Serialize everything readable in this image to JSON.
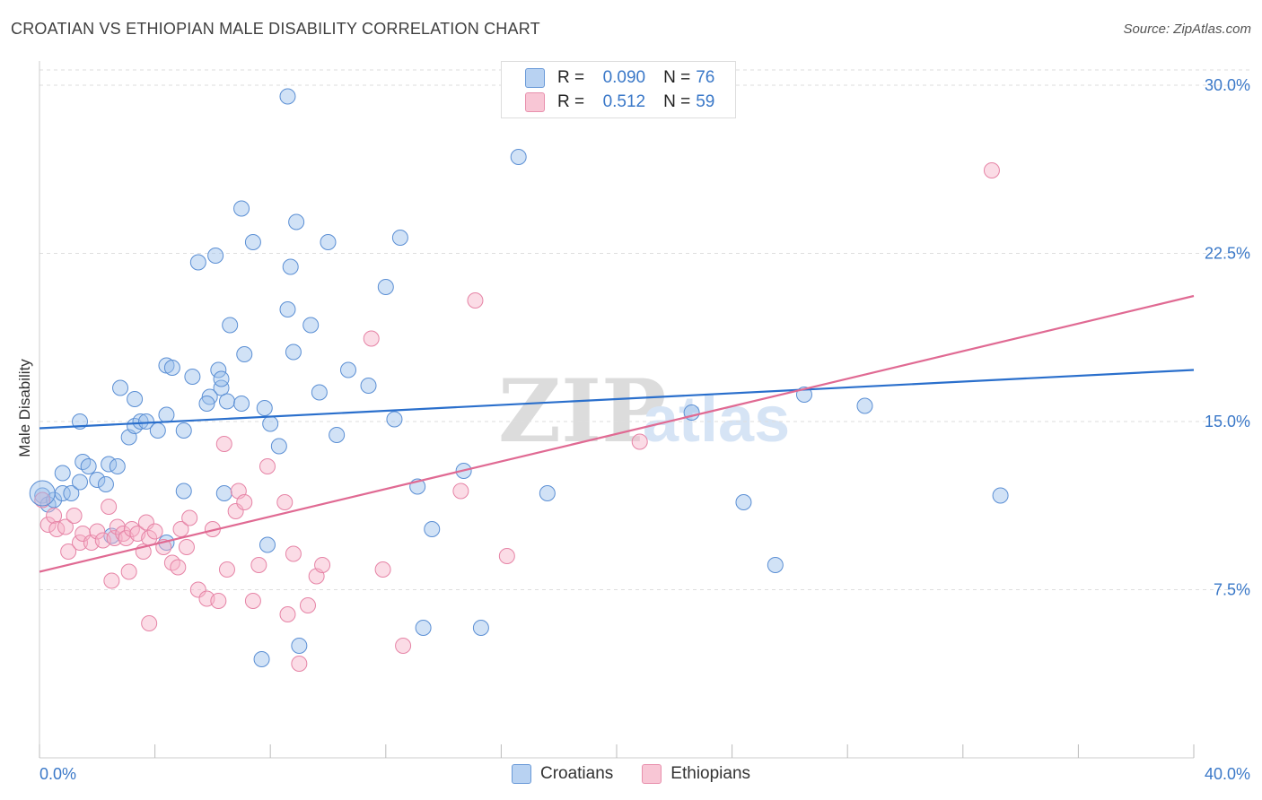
{
  "title": "CROATIAN VS ETHIOPIAN MALE DISABILITY CORRELATION CHART",
  "source": "Source: ZipAtlas.com",
  "watermark": {
    "zip": "ZIP",
    "atlas": "atlas"
  },
  "legend": {
    "rows": [
      {
        "r_label": "R =",
        "r_value": "0.090",
        "n_label": "N =",
        "n_value": "76"
      },
      {
        "r_label": "R =",
        "r_value": "0.512",
        "n_label": "N =",
        "n_value": "59"
      }
    ]
  },
  "chart_data": {
    "type": "scatter",
    "title": "CROATIAN VS ETHIOPIAN MALE DISABILITY CORRELATION CHART",
    "xlabel": "",
    "ylabel": "Male Disability",
    "xlim": [
      0,
      40
    ],
    "ylim": [
      0,
      31
    ],
    "x_tick_labels": [
      "0.0%",
      "40.0%"
    ],
    "y_tick_labels": [
      "7.5%",
      "15.0%",
      "22.5%",
      "30.0%"
    ],
    "y_ticks": [
      7.5,
      15.0,
      22.5,
      30.0
    ],
    "grid": true,
    "legend_position": "top-center and bottom",
    "colors": {
      "croatians": "#4a86d6",
      "ethiopians": "#e8799e",
      "croatians_line": "#2a6fcc",
      "ethiopians_line": "#e06a93",
      "tick_label": "#3a78c8"
    },
    "series": [
      {
        "name": "Croatians",
        "r": 0.09,
        "n": 76,
        "trend": {
          "x": [
            0,
            40
          ],
          "y": [
            14.7,
            17.3
          ]
        },
        "points": [
          [
            0.1,
            11.7
          ],
          [
            0.3,
            11.3
          ],
          [
            0.5,
            11.5
          ],
          [
            0.8,
            11.8
          ],
          [
            1.1,
            11.8
          ],
          [
            0.8,
            12.7
          ],
          [
            1.4,
            12.3
          ],
          [
            1.5,
            13.2
          ],
          [
            1.7,
            13.0
          ],
          [
            2.0,
            12.4
          ],
          [
            2.4,
            13.1
          ],
          [
            2.7,
            13.0
          ],
          [
            2.3,
            12.2
          ],
          [
            1.4,
            15.0
          ],
          [
            3.1,
            14.3
          ],
          [
            3.3,
            14.8
          ],
          [
            3.5,
            15.0
          ],
          [
            3.7,
            15.0
          ],
          [
            4.1,
            14.6
          ],
          [
            3.3,
            16.0
          ],
          [
            2.8,
            16.5
          ],
          [
            4.4,
            15.3
          ],
          [
            5.0,
            14.6
          ],
          [
            4.4,
            17.5
          ],
          [
            4.6,
            17.4
          ],
          [
            5.3,
            17.0
          ],
          [
            6.3,
            16.5
          ],
          [
            5.9,
            16.1
          ],
          [
            5.8,
            15.8
          ],
          [
            6.5,
            15.9
          ],
          [
            6.6,
            19.3
          ],
          [
            6.2,
            17.3
          ],
          [
            7.1,
            18.0
          ],
          [
            7.0,
            15.8
          ],
          [
            6.3,
            16.9
          ],
          [
            7.8,
            15.6
          ],
          [
            8.0,
            14.9
          ],
          [
            8.8,
            18.1
          ],
          [
            8.6,
            20.0
          ],
          [
            9.4,
            19.3
          ],
          [
            8.7,
            21.9
          ],
          [
            5.5,
            22.1
          ],
          [
            6.1,
            22.4
          ],
          [
            7.0,
            24.5
          ],
          [
            7.4,
            23.0
          ],
          [
            8.9,
            23.9
          ],
          [
            10.0,
            23.0
          ],
          [
            9.7,
            16.3
          ],
          [
            10.7,
            17.3
          ],
          [
            11.4,
            16.6
          ],
          [
            10.3,
            14.4
          ],
          [
            12.0,
            21.0
          ],
          [
            12.5,
            23.2
          ],
          [
            12.3,
            15.1
          ],
          [
            13.1,
            12.1
          ],
          [
            13.6,
            10.2
          ],
          [
            14.7,
            12.8
          ],
          [
            8.3,
            13.9
          ],
          [
            6.4,
            11.8
          ],
          [
            5.0,
            11.9
          ],
          [
            4.4,
            9.6
          ],
          [
            7.9,
            9.5
          ],
          [
            2.5,
            9.9
          ],
          [
            13.3,
            5.8
          ],
          [
            15.3,
            5.8
          ],
          [
            9.0,
            5.0
          ],
          [
            7.7,
            4.4
          ],
          [
            8.6,
            29.5
          ],
          [
            16.6,
            26.8
          ],
          [
            17.6,
            11.8
          ],
          [
            22.6,
            15.4
          ],
          [
            24.4,
            11.4
          ],
          [
            25.5,
            8.6
          ],
          [
            26.5,
            16.2
          ],
          [
            28.6,
            15.7
          ],
          [
            33.3,
            11.7
          ]
        ]
      },
      {
        "name": "Ethiopians",
        "r": 0.512,
        "n": 59,
        "trend": {
          "x": [
            0,
            40
          ],
          "y": [
            8.3,
            20.6
          ]
        },
        "points": [
          [
            0.1,
            11.5
          ],
          [
            0.3,
            10.4
          ],
          [
            0.5,
            10.8
          ],
          [
            0.6,
            10.2
          ],
          [
            0.9,
            10.3
          ],
          [
            1.0,
            9.2
          ],
          [
            1.2,
            10.8
          ],
          [
            1.4,
            9.6
          ],
          [
            1.5,
            10.0
          ],
          [
            1.8,
            9.6
          ],
          [
            2.0,
            10.1
          ],
          [
            2.2,
            9.7
          ],
          [
            2.4,
            11.2
          ],
          [
            2.6,
            9.8
          ],
          [
            2.7,
            10.3
          ],
          [
            2.9,
            10.0
          ],
          [
            3.0,
            9.8
          ],
          [
            3.2,
            10.2
          ],
          [
            3.4,
            10.0
          ],
          [
            3.6,
            9.2
          ],
          [
            3.7,
            10.5
          ],
          [
            3.8,
            9.8
          ],
          [
            4.0,
            10.1
          ],
          [
            4.3,
            9.4
          ],
          [
            4.6,
            8.7
          ],
          [
            4.8,
            8.5
          ],
          [
            4.9,
            10.2
          ],
          [
            5.1,
            9.4
          ],
          [
            5.2,
            10.7
          ],
          [
            5.5,
            7.5
          ],
          [
            5.8,
            7.1
          ],
          [
            6.0,
            10.2
          ],
          [
            6.2,
            7.0
          ],
          [
            6.5,
            8.4
          ],
          [
            6.8,
            11.0
          ],
          [
            6.9,
            11.9
          ],
          [
            7.1,
            11.4
          ],
          [
            7.4,
            7.0
          ],
          [
            7.6,
            8.6
          ],
          [
            7.9,
            13.0
          ],
          [
            8.5,
            11.4
          ],
          [
            8.6,
            6.4
          ],
          [
            8.8,
            9.1
          ],
          [
            9.0,
            4.2
          ],
          [
            9.6,
            8.1
          ],
          [
            9.8,
            8.6
          ],
          [
            9.3,
            6.8
          ],
          [
            11.5,
            18.7
          ],
          [
            11.9,
            8.4
          ],
          [
            12.6,
            5.0
          ],
          [
            14.6,
            11.9
          ],
          [
            15.1,
            20.4
          ],
          [
            16.2,
            9.0
          ],
          [
            20.8,
            14.1
          ],
          [
            33.0,
            26.2
          ],
          [
            6.4,
            14.0
          ],
          [
            3.1,
            8.3
          ],
          [
            2.5,
            7.9
          ],
          [
            3.8,
            6.0
          ]
        ]
      }
    ]
  },
  "bottom_legend": [
    {
      "label": "Croatians"
    },
    {
      "label": "Ethiopians"
    }
  ]
}
